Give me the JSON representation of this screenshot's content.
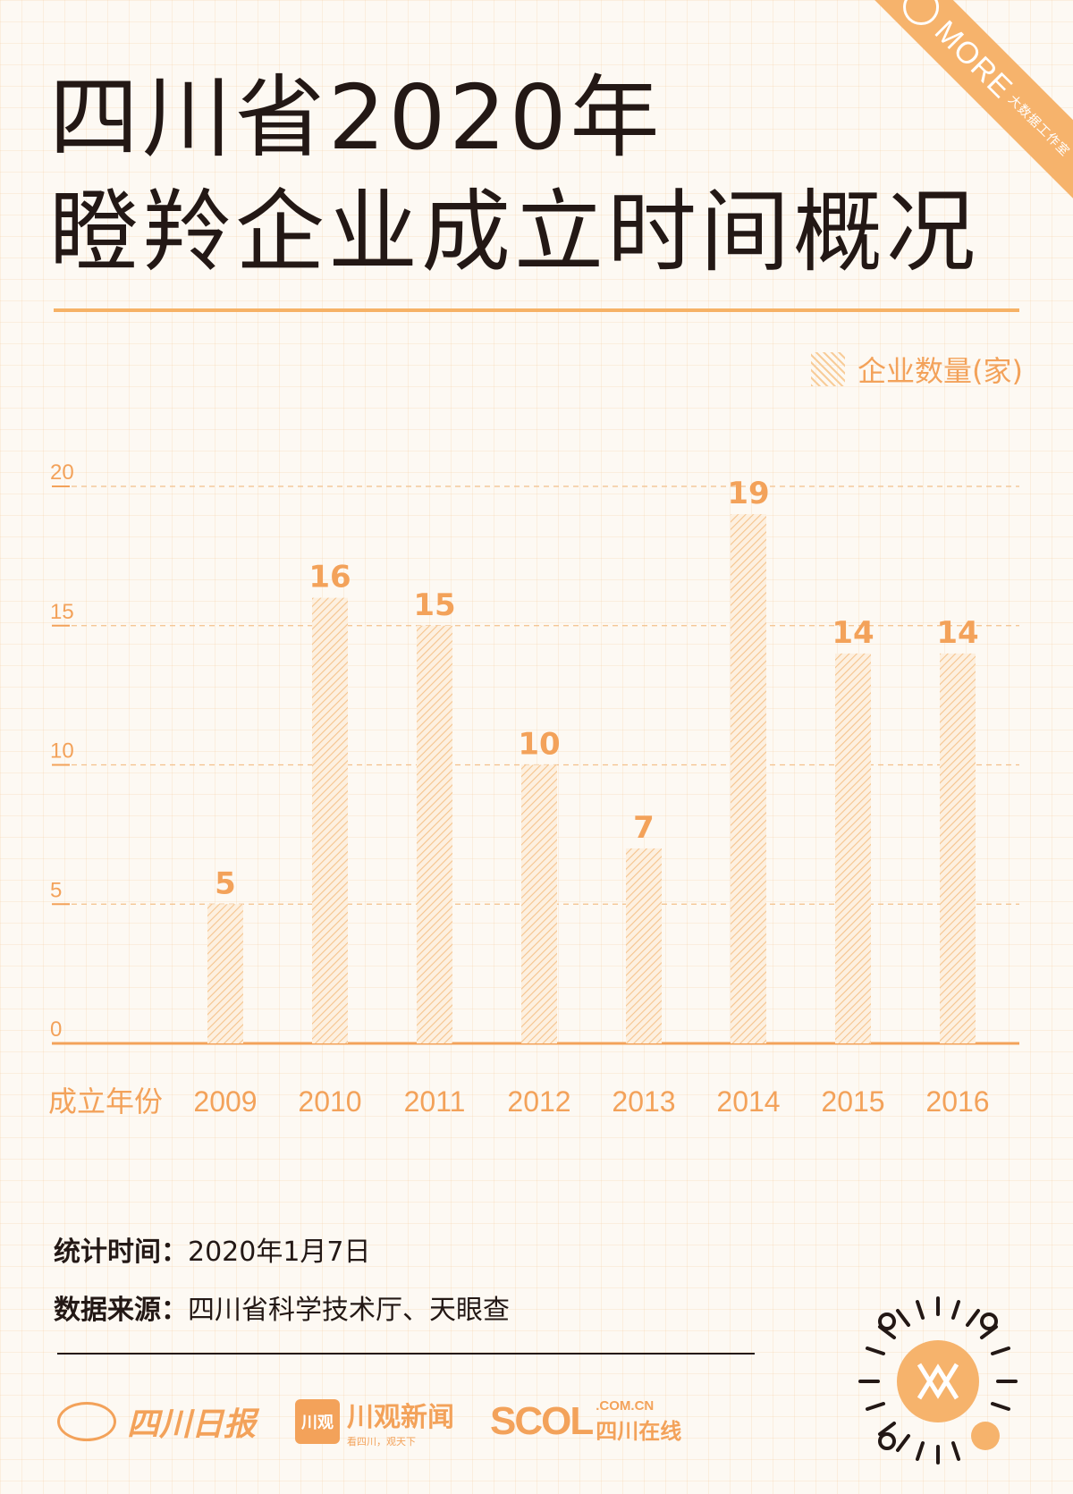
{
  "title_lines": [
    "四川省2020年",
    "瞪羚企业成立时间概况"
  ],
  "ribbon": {
    "text": "MORE",
    "sub": "大数据工作室"
  },
  "accent_color": "#f3a25a",
  "chart_data": {
    "type": "bar",
    "categories": [
      "2009",
      "2010",
      "2011",
      "2012",
      "2013",
      "2014",
      "2015",
      "2016"
    ],
    "series": [
      {
        "name": "企业数量(家)",
        "values": [
          5,
          16,
          15,
          10,
          7,
          19,
          14,
          14
        ]
      }
    ],
    "xlabel": "成立年份",
    "ylabel": "",
    "ylim": [
      0,
      20
    ],
    "yticks": [
      0,
      5,
      10,
      15,
      20
    ],
    "grid": true,
    "legend": "top-right"
  },
  "footer": {
    "stat_label": "统计时间：",
    "stat_value": "2020年1月7日",
    "source_label": "数据来源：",
    "source_value": "四川省科学技术厅、天眼查"
  },
  "logos": {
    "sichuan_daily": "四川日报",
    "chuanguan_box": "川观",
    "chuanguan_main": "川观新闻",
    "chuanguan_sub": "看四川，观天下",
    "scol_main": "SCOL",
    "scol_domain": ".COM.CN",
    "scol_name": "四川在线"
  }
}
